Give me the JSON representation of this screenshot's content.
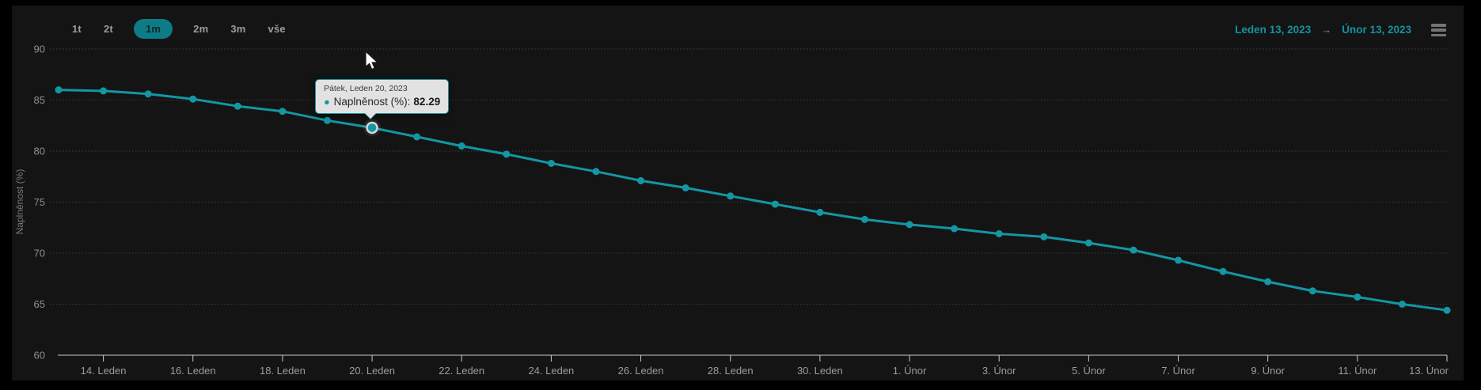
{
  "range_selector": {
    "buttons": [
      {
        "label": "1t",
        "selected": false
      },
      {
        "label": "2t",
        "selected": false
      },
      {
        "label": "1m",
        "selected": true
      },
      {
        "label": "2m",
        "selected": false
      },
      {
        "label": "3m",
        "selected": false
      },
      {
        "label": "vše",
        "selected": false
      }
    ]
  },
  "date_range": {
    "from": "Leden 13, 2023",
    "arrow": "→",
    "to": "Únor 13, 2023"
  },
  "icons": {
    "menu": "hamburger-menu-icon",
    "date_arrow": "right-arrow-icon",
    "cursor": "mouse-pointer-icon",
    "series_bullet": "●"
  },
  "tooltip": {
    "header": "Pátek, Leden 20, 2023",
    "series_label": "Naplněnost (%):",
    "value": "82.29"
  },
  "chart_data": {
    "type": "line",
    "title": "",
    "ylabel": "Naplněnost (%)",
    "xlabel": "",
    "ylim": [
      60,
      90
    ],
    "yticks": [
      60,
      65,
      70,
      75,
      80,
      85,
      90
    ],
    "x_start": "Leden 13, 2023",
    "x_end": "Únor 13, 2023",
    "xticklabels": [
      "14. Leden",
      "16. Leden",
      "18. Leden",
      "20. Leden",
      "22. Leden",
      "24. Leden",
      "26. Leden",
      "28. Leden",
      "30. Leden",
      "1. Únor",
      "3. Únor",
      "5. Únor",
      "7. Únor",
      "9. Únor",
      "11. Únor",
      "13. Únor"
    ],
    "grid": "dotted-horizontal",
    "legend_position": "none",
    "series": [
      {
        "name": "Naplněnost (%)",
        "color": "#1496a3",
        "values": [
          86.0,
          85.9,
          85.6,
          85.1,
          84.4,
          83.9,
          83.0,
          82.29,
          81.4,
          80.5,
          79.7,
          78.8,
          78.0,
          77.1,
          76.4,
          75.6,
          74.8,
          74.0,
          73.3,
          72.8,
          72.4,
          71.9,
          71.6,
          71.0,
          70.3,
          69.3,
          68.2,
          67.2,
          66.3,
          65.7,
          65.0,
          64.4
        ]
      }
    ],
    "highlight": {
      "index": 7,
      "value": 82.29
    }
  },
  "colors": {
    "page_bg": "#000000",
    "chart_bg": "#141414",
    "accent_teal": "#1496a3",
    "selected_button_bg": "#0d7c87",
    "selected_button_text": "#07272b",
    "date_text": "#15929f",
    "axis_line": "#c7ccd1",
    "grid_line": "#3d3d3d",
    "label_gray": "#9c9c9c",
    "tooltip_bg": "#e2e2e2"
  }
}
